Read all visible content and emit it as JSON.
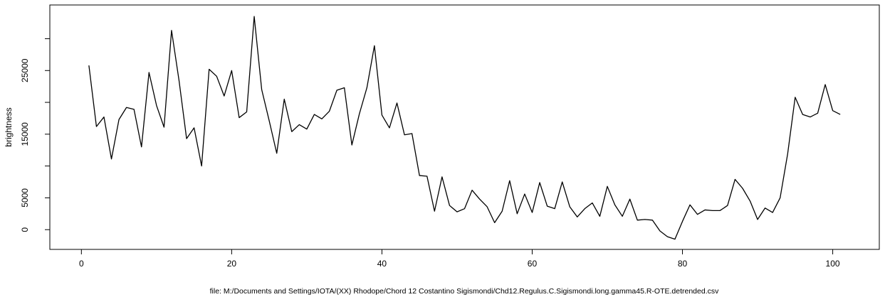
{
  "chart_data": {
    "type": "line",
    "title": "",
    "xlabel": "file: M:/Documents and Settings/IOTA/(XX) Rhodope/Chord 12 Costantino Sigismondi/Chd12.Regulus.C.Sigismondi.long.gamma45.R-OTE.detrended.csv",
    "ylabel": "brightness",
    "xlim": [
      -4.2,
      106.2
    ],
    "ylim": [
      -3100,
      35300
    ],
    "x_ticks": [
      0,
      20,
      40,
      60,
      80,
      100
    ],
    "x_tick_labels": [
      "0",
      "20",
      "40",
      "60",
      "80",
      "100"
    ],
    "y_ticks": [
      0,
      5000,
      15000,
      25000
    ],
    "y_tick_labels": [
      "0",
      "5000",
      "15000",
      "25000"
    ],
    "y_minor_ticks": [
      10000,
      20000,
      30000
    ],
    "grid": false,
    "legend": "none",
    "line_color": "#000000",
    "series": [
      {
        "x": [
          1,
          2,
          3,
          4,
          5,
          6,
          7,
          8,
          9,
          10,
          11,
          12,
          13,
          14,
          15,
          16,
          17,
          18,
          19,
          20,
          21,
          22,
          23,
          24,
          25,
          26,
          27,
          28,
          29,
          30,
          31,
          32,
          33,
          34,
          35,
          36,
          37,
          38,
          39,
          40,
          41,
          42,
          43,
          44,
          45,
          46,
          47,
          48,
          49,
          50,
          51,
          52,
          53,
          54,
          55,
          56,
          57,
          58,
          59,
          60,
          61,
          62,
          63,
          64,
          65,
          66,
          67,
          68,
          69,
          70,
          71,
          72,
          73,
          74,
          75,
          76,
          77,
          78,
          79,
          80,
          81,
          82,
          83,
          84,
          85,
          86,
          87,
          88,
          89,
          90,
          91,
          92,
          93,
          94,
          95,
          96,
          97,
          98,
          99,
          100,
          101
        ],
        "values": [
          25800,
          16200,
          17700,
          11100,
          17300,
          19200,
          18900,
          13000,
          24700,
          19500,
          16100,
          31300,
          23400,
          14300,
          16000,
          10000,
          25200,
          24100,
          21000,
          25000,
          17600,
          18500,
          33500,
          22000,
          17100,
          12000,
          20500,
          15400,
          16500,
          15800,
          18100,
          17400,
          18600,
          21900,
          22300,
          13300,
          18200,
          22300,
          28900,
          18000,
          16000,
          19900,
          14900,
          15100,
          8500,
          8400,
          2900,
          8300,
          3800,
          2800,
          3300,
          6200,
          4800,
          3600,
          1100,
          2900,
          7700,
          2500,
          5600,
          2700,
          7400,
          3700,
          3300,
          7500,
          3600,
          2000,
          3300,
          4200,
          2100,
          6800,
          3900,
          2100,
          4800,
          1500,
          1600,
          1500,
          -200,
          -1100,
          -1500,
          1300,
          3900,
          2400,
          3100,
          3000,
          3000,
          3800,
          7900,
          6500,
          4500,
          1600,
          3400,
          2700,
          5000,
          11900,
          20800,
          18100,
          17700,
          18300,
          22800,
          18700,
          18100
        ]
      }
    ]
  }
}
